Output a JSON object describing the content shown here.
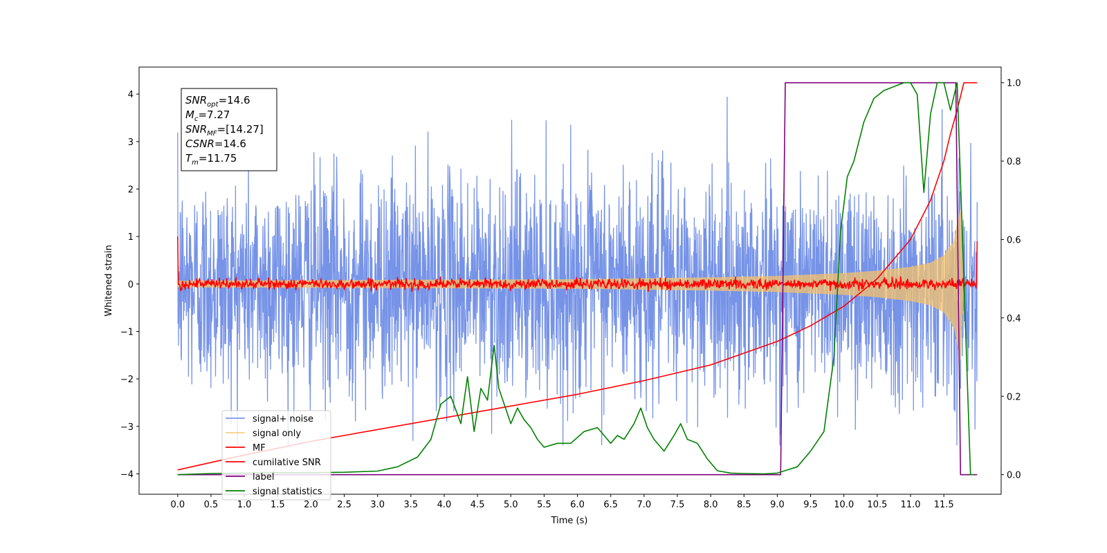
{
  "chart_data": {
    "type": "line",
    "xlabel": "Time (s)",
    "ylabel_left": "Whitened strain",
    "ylabel_right": "",
    "xlim": [
      -0.58,
      12.36
    ],
    "ylim_left": [
      -4.43,
      4.57
    ],
    "ylim_right": [
      -0.05,
      1.04
    ],
    "x_ticks": [
      0.0,
      0.5,
      1.0,
      1.5,
      2.0,
      2.5,
      3.0,
      3.5,
      4.0,
      4.5,
      5.0,
      5.5,
      6.0,
      6.5,
      7.0,
      7.5,
      8.0,
      8.5,
      9.0,
      9.5,
      10.0,
      10.5,
      11.0,
      11.5
    ],
    "x_tick_labels": [
      "0.0",
      "0.5",
      "1.0",
      "1.5",
      "2.0",
      "2.5",
      "3.0",
      "3.5",
      "4.0",
      "4.5",
      "5.0",
      "5.5",
      "6.0",
      "6.5",
      "7.0",
      "7.5",
      "8.0",
      "8.5",
      "9.0",
      "9.5",
      "10.0",
      "10.5",
      "11.0",
      "11.5"
    ],
    "y_ticks_left": [
      -4,
      -3,
      -2,
      -1,
      0,
      1,
      2,
      3,
      4
    ],
    "y_tick_labels_left": [
      "−4",
      "−3",
      "−2",
      "−1",
      "0",
      "1",
      "2",
      "3",
      "4"
    ],
    "y_ticks_right": [
      0.0,
      0.2,
      0.4,
      0.6,
      0.8,
      1.0
    ],
    "y_tick_labels_right": [
      "0.0",
      "0.2",
      "0.4",
      "0.6",
      "0.8",
      "1.0"
    ],
    "legend_position": "lower-left",
    "series": [
      {
        "name": "signal+ noise",
        "axis": "left",
        "color": "#6f8de6",
        "description_range": [
          -3.4,
          4.2
        ],
        "x_range": [
          0.0,
          12.0
        ]
      },
      {
        "name": "signal only",
        "axis": "left",
        "color": "#f5c26b",
        "envelope": {
          "x": [
            0,
            2,
            4,
            6,
            8,
            9,
            10,
            10.5,
            11,
            11.3,
            11.5,
            11.65,
            11.75,
            11.8
          ],
          "amp": [
            0.07,
            0.08,
            0.09,
            0.1,
            0.14,
            0.17,
            0.23,
            0.28,
            0.36,
            0.45,
            0.6,
            0.9,
            1.6,
            0.0
          ]
        }
      },
      {
        "name": "MF",
        "axis": "left",
        "color": "#ff0000",
        "base": 0.0,
        "jitter": 0.1,
        "start_value": 1.0,
        "end_value": 0.9
      },
      {
        "name": "cumilative SNR",
        "axis": "right",
        "color": "#ff0000",
        "x": [
          0.0,
          1.0,
          2.0,
          3.0,
          4.0,
          5.0,
          6.0,
          7.0,
          8.0,
          9.0,
          9.5,
          10.0,
          10.5,
          11.0,
          11.3,
          11.5,
          11.6,
          11.7,
          11.8,
          11.9,
          12.0
        ],
        "y": [
          0.012,
          0.05,
          0.085,
          0.115,
          0.145,
          0.175,
          0.205,
          0.24,
          0.28,
          0.34,
          0.38,
          0.43,
          0.5,
          0.6,
          0.7,
          0.8,
          0.87,
          0.93,
          1.0,
          1.0,
          1.0
        ]
      },
      {
        "name": "label",
        "axis": "right",
        "color": "#7f007f",
        "x": [
          0.0,
          9.05,
          9.12,
          11.68,
          11.75,
          12.0
        ],
        "y": [
          0.0,
          0.0,
          1.0,
          1.0,
          0.0,
          0.0
        ]
      },
      {
        "name": "signal statistics",
        "axis": "right",
        "color": "#008000",
        "x": [
          0.0,
          0.5,
          1.0,
          1.5,
          2.0,
          2.5,
          3.0,
          3.3,
          3.6,
          3.8,
          3.95,
          4.1,
          4.25,
          4.35,
          4.45,
          4.55,
          4.65,
          4.75,
          4.82,
          4.9,
          5.0,
          5.1,
          5.2,
          5.3,
          5.4,
          5.5,
          5.7,
          5.9,
          6.1,
          6.3,
          6.5,
          6.6,
          6.7,
          6.85,
          6.95,
          7.05,
          7.15,
          7.3,
          7.45,
          7.55,
          7.65,
          7.8,
          7.95,
          8.1,
          8.3,
          8.5,
          8.8,
          9.0,
          9.3,
          9.5,
          9.7,
          9.85,
          9.95,
          10.05,
          10.15,
          10.3,
          10.45,
          10.6,
          10.75,
          10.9,
          11.0,
          11.1,
          11.2,
          11.3,
          11.4,
          11.5,
          11.6,
          11.7,
          11.8,
          11.9,
          11.95
        ],
        "y": [
          0.0,
          0.003,
          0.004,
          0.005,
          0.005,
          0.006,
          0.009,
          0.02,
          0.045,
          0.09,
          0.18,
          0.2,
          0.13,
          0.25,
          0.11,
          0.22,
          0.19,
          0.33,
          0.22,
          0.18,
          0.13,
          0.17,
          0.14,
          0.12,
          0.09,
          0.07,
          0.08,
          0.08,
          0.11,
          0.12,
          0.08,
          0.1,
          0.09,
          0.13,
          0.17,
          0.12,
          0.09,
          0.06,
          0.1,
          0.13,
          0.09,
          0.08,
          0.04,
          0.01,
          0.004,
          0.003,
          0.002,
          0.004,
          0.02,
          0.06,
          0.11,
          0.3,
          0.62,
          0.76,
          0.8,
          0.9,
          0.96,
          0.98,
          0.99,
          1.0,
          1.0,
          0.97,
          0.72,
          0.92,
          1.0,
          1.0,
          0.93,
          1.0,
          0.5,
          0.0,
          0.0
        ]
      }
    ],
    "annotations": {
      "snr_opt": {
        "label": "SNR",
        "sub": "opt",
        "value": "=14.6"
      },
      "mc": {
        "label": "M",
        "sub": "c",
        "value": "=7.27"
      },
      "snr_mf": {
        "label": "SNR",
        "sub": "MF",
        "value": "=[14.27]"
      },
      "csnr": {
        "label": "CSNR",
        "sub": "",
        "value": "=14.6"
      },
      "tm": {
        "label": "T",
        "sub": "m",
        "value": "=11.75"
      }
    }
  }
}
